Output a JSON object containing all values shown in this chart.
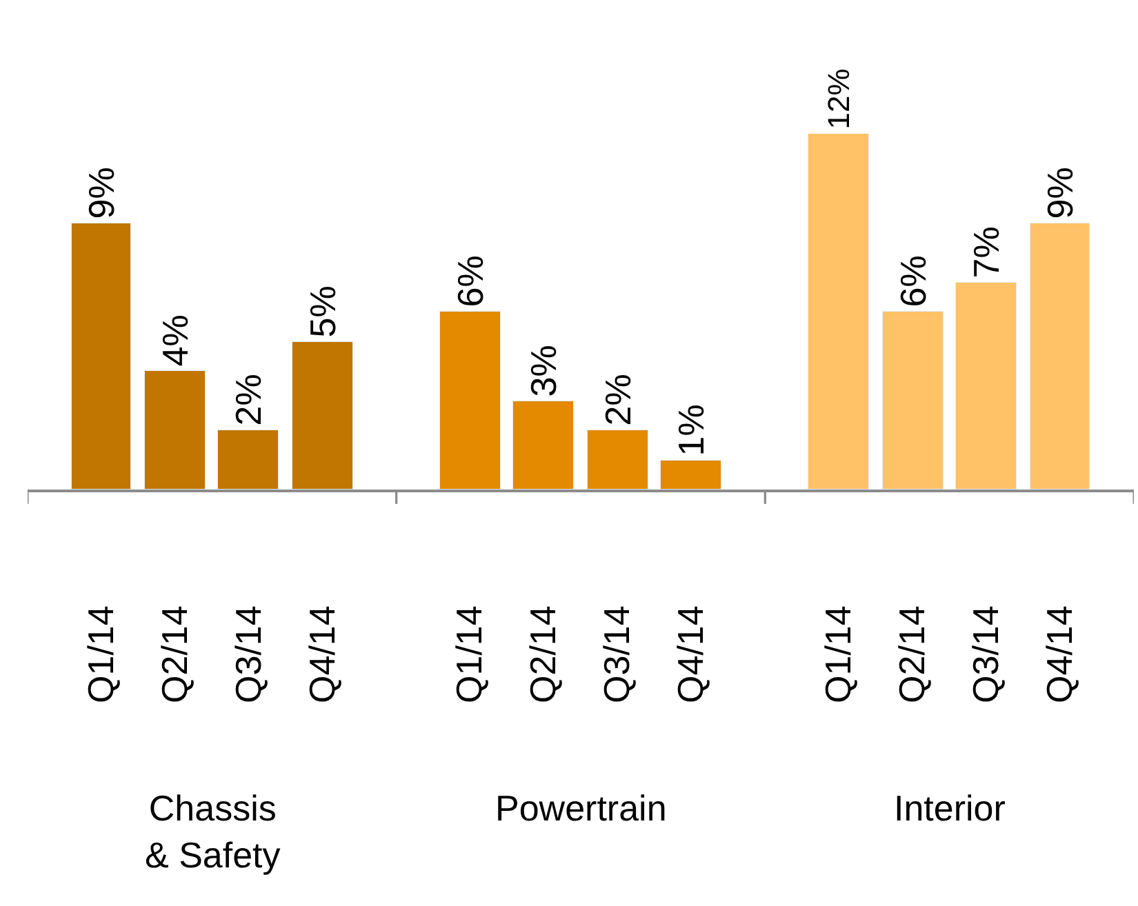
{
  "chart_data": {
    "type": "bar",
    "categories": [
      "Q1/14",
      "Q2/14",
      "Q3/14",
      "Q4/14",
      "Q1/14",
      "Q2/14",
      "Q3/14",
      "Q4/14",
      "Q1/14",
      "Q2/14",
      "Q3/14",
      "Q4/14"
    ],
    "series": [
      {
        "color": "#c07600",
        "values": [
          9,
          4,
          2,
          5,
          null,
          null,
          null,
          null,
          null,
          null,
          null,
          null
        ],
        "value_labels": [
          "9%",
          "4%",
          "2%",
          "5%",
          null,
          null,
          null,
          null,
          null,
          null,
          null,
          null
        ]
      },
      {
        "color": "#e38a00",
        "values": [
          null,
          null,
          null,
          null,
          6,
          3,
          2,
          1,
          null,
          null,
          null,
          null
        ],
        "value_labels": [
          null,
          null,
          null,
          null,
          "6%",
          "3%",
          "2%",
          "1%",
          null,
          null,
          null,
          null
        ]
      },
      {
        "color": "#ffc266",
        "values": [
          null,
          null,
          null,
          null,
          null,
          null,
          null,
          null,
          12,
          6,
          7,
          9
        ],
        "value_labels": [
          null,
          null,
          null,
          null,
          null,
          null,
          null,
          null,
          "12%",
          "6%",
          "7%",
          "9%"
        ]
      }
    ],
    "annotations": [
      "Chassis\n& Safety",
      "Powertrain",
      "Interior"
    ],
    "legend": false,
    "tick_labels": "x"
  }
}
